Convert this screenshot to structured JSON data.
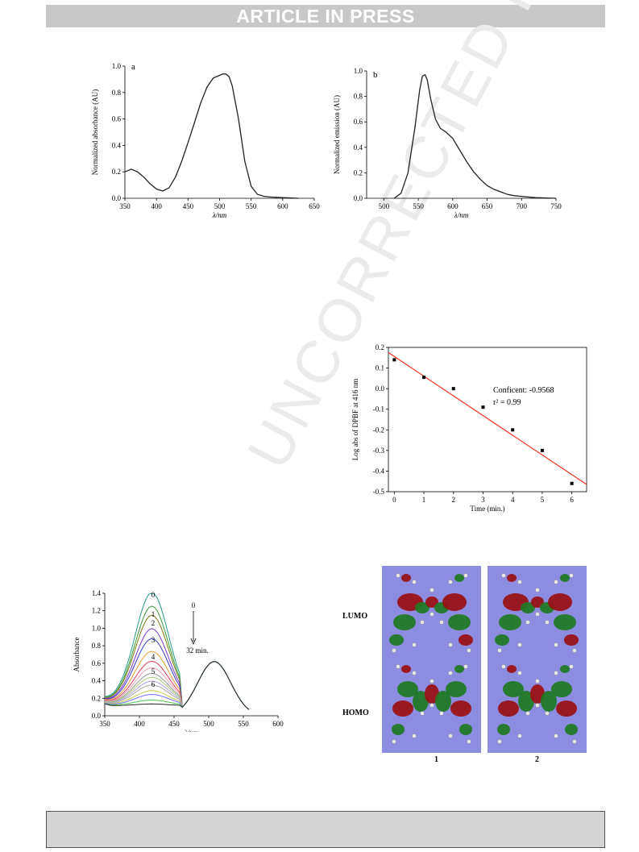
{
  "header": {
    "banner_text": "ARTICLE IN PRESS"
  },
  "watermark": {
    "text": "UNCORRECTED PROOF"
  },
  "chart_data": [
    {
      "id": "fig_a",
      "type": "line",
      "panel_label": "a",
      "xlabel": "λ/nm",
      "ylabel": "Normalized absorbance (AU)",
      "xlim": [
        350,
        650
      ],
      "ylim": [
        0,
        1.0
      ],
      "xticks": [
        350,
        400,
        450,
        500,
        550,
        600,
        650
      ],
      "yticks": [
        0.0,
        0.2,
        0.4,
        0.6,
        0.8,
        1.0
      ],
      "series": [
        {
          "color": "#222222",
          "x": [
            350,
            360,
            370,
            380,
            390,
            400,
            410,
            420,
            430,
            440,
            450,
            460,
            470,
            480,
            490,
            500,
            505,
            510,
            515,
            520,
            530,
            540,
            550,
            560,
            570,
            580,
            600,
            625
          ],
          "y": [
            0.2,
            0.22,
            0.2,
            0.16,
            0.11,
            0.07,
            0.055,
            0.08,
            0.16,
            0.28,
            0.42,
            0.57,
            0.72,
            0.84,
            0.91,
            0.93,
            0.94,
            0.94,
            0.92,
            0.85,
            0.6,
            0.28,
            0.09,
            0.03,
            0.015,
            0.01,
            0.005,
            0.0
          ]
        }
      ]
    },
    {
      "id": "fig_b",
      "type": "line",
      "panel_label": "b",
      "xlabel": "λ/nm",
      "ylabel": "Normalized emission (AU)",
      "xlim": [
        475,
        750
      ],
      "ylim": [
        0,
        1.0
      ],
      "xticks": [
        500,
        550,
        600,
        650,
        700,
        750
      ],
      "yticks": [
        0.0,
        0.2,
        0.4,
        0.6,
        0.8,
        1.0
      ],
      "series": [
        {
          "color": "#222222",
          "x": [
            515,
            525,
            535,
            545,
            552,
            556,
            560,
            563,
            568,
            575,
            582,
            590,
            600,
            610,
            620,
            630,
            640,
            650,
            660,
            670,
            680,
            690,
            700,
            720,
            750
          ],
          "y": [
            0.0,
            0.04,
            0.2,
            0.55,
            0.85,
            0.96,
            0.97,
            0.93,
            0.78,
            0.62,
            0.55,
            0.52,
            0.47,
            0.38,
            0.29,
            0.21,
            0.15,
            0.1,
            0.07,
            0.05,
            0.03,
            0.02,
            0.015,
            0.005,
            0.0
          ]
        }
      ]
    },
    {
      "id": "fig_log",
      "type": "scatter",
      "xlabel": "Time (min.)",
      "ylabel": "Log abs of DPBF at 416 nm",
      "xlim": [
        -0.2,
        6.5
      ],
      "ylim": [
        -0.5,
        0.2
      ],
      "xticks": [
        0,
        1,
        2,
        3,
        4,
        5,
        6
      ],
      "yticks": [
        0.2,
        0.1,
        0.0,
        -0.1,
        -0.2,
        -0.3,
        -0.4,
        -0.5
      ],
      "points": {
        "x": [
          0,
          1,
          2,
          3,
          4,
          5,
          6
        ],
        "y": [
          0.14,
          0.055,
          0.0,
          -0.09,
          -0.2,
          -0.3,
          -0.46
        ]
      },
      "fit_line": {
        "x": [
          -0.2,
          6.5
        ],
        "y": [
          0.175,
          -0.465
        ],
        "color": "#ee3322"
      },
      "annotations": [
        "Conficent: -0.9568",
        "r² = 0.99"
      ]
    },
    {
      "id": "fig_c",
      "type": "line",
      "xlabel": "λ/nm",
      "ylabel": "Absorbance",
      "xlim": [
        350,
        600
      ],
      "ylim": [
        0,
        1.4
      ],
      "xticks": [
        350,
        400,
        450,
        500,
        550,
        600
      ],
      "yticks": [
        0.0,
        0.2,
        0.4,
        0.6,
        0.8,
        1.0,
        1.2,
        1.4
      ],
      "curve_labels": [
        "0",
        "1",
        "2",
        "3",
        "4",
        "5",
        "6"
      ],
      "arrow_labels": {
        "start": "0",
        "end": "32 min."
      },
      "series": [
        {
          "peak": 1.33,
          "color": "#2a9a8a"
        },
        {
          "peak": 1.18,
          "color": "#3c9a3a"
        },
        {
          "peak": 1.08,
          "color": "#7a7a10"
        },
        {
          "peak": 0.93,
          "color": "#7a3ad0"
        },
        {
          "peak": 0.82,
          "color": "#3a3ac8"
        },
        {
          "peak": 0.68,
          "color": "#e89a2a"
        },
        {
          "peak": 0.57,
          "color": "#e03a5a"
        },
        {
          "peak": 0.5,
          "color": "#f0a0b0"
        },
        {
          "peak": 0.44,
          "color": "#999999"
        },
        {
          "peak": 0.4,
          "color": "#a4c870"
        },
        {
          "peak": 0.36,
          "color": "#b0a0e0"
        },
        {
          "peak": 0.32,
          "color": "#aaaaaa"
        },
        {
          "peak": 0.26,
          "color": "#c8c850"
        },
        {
          "peak": 0.22,
          "color": "#7070ff"
        },
        {
          "peak": 0.16,
          "color": "#50c850"
        },
        {
          "peak": 0.12,
          "color": "#2a2a2a"
        }
      ]
    }
  ],
  "orbitals": {
    "row_labels": [
      "LUMO",
      "HOMO"
    ],
    "molecule_labels": [
      "1",
      "2"
    ]
  }
}
